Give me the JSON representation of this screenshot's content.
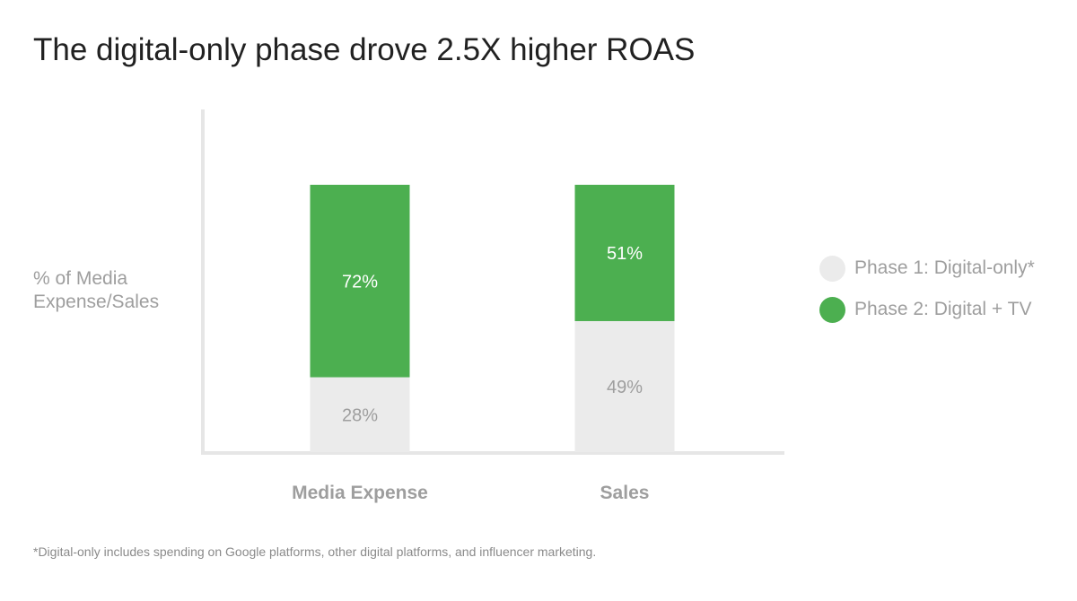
{
  "title": "The digital-only phase drove 2.5X higher ROAS",
  "footnote": "*Digital-only includes spending on Google platforms, other digital platforms, and influencer marketing.",
  "colors": {
    "phase1": "#ebebeb",
    "phase2": "#4caf50",
    "axis": "#e6e6e6",
    "label_dark": "#9e9e9e",
    "label_light": "#ffffff"
  },
  "chart_data": {
    "type": "bar",
    "stacked": true,
    "title": "The digital-only phase drove 2.5X higher ROAS",
    "ylabel": "% of Media Expense/Sales",
    "xlabel": "",
    "ylim": [
      0,
      100
    ],
    "grid": false,
    "legend_position": "right",
    "categories": [
      "Media Expense",
      "Sales"
    ],
    "series": [
      {
        "name": "Phase 1: Digital-only*",
        "values": [
          28,
          49
        ],
        "labels": [
          "28%",
          "49%"
        ]
      },
      {
        "name": "Phase 2: Digital + TV",
        "values": [
          72,
          51
        ],
        "labels": [
          "72%",
          "51%"
        ]
      }
    ]
  }
}
